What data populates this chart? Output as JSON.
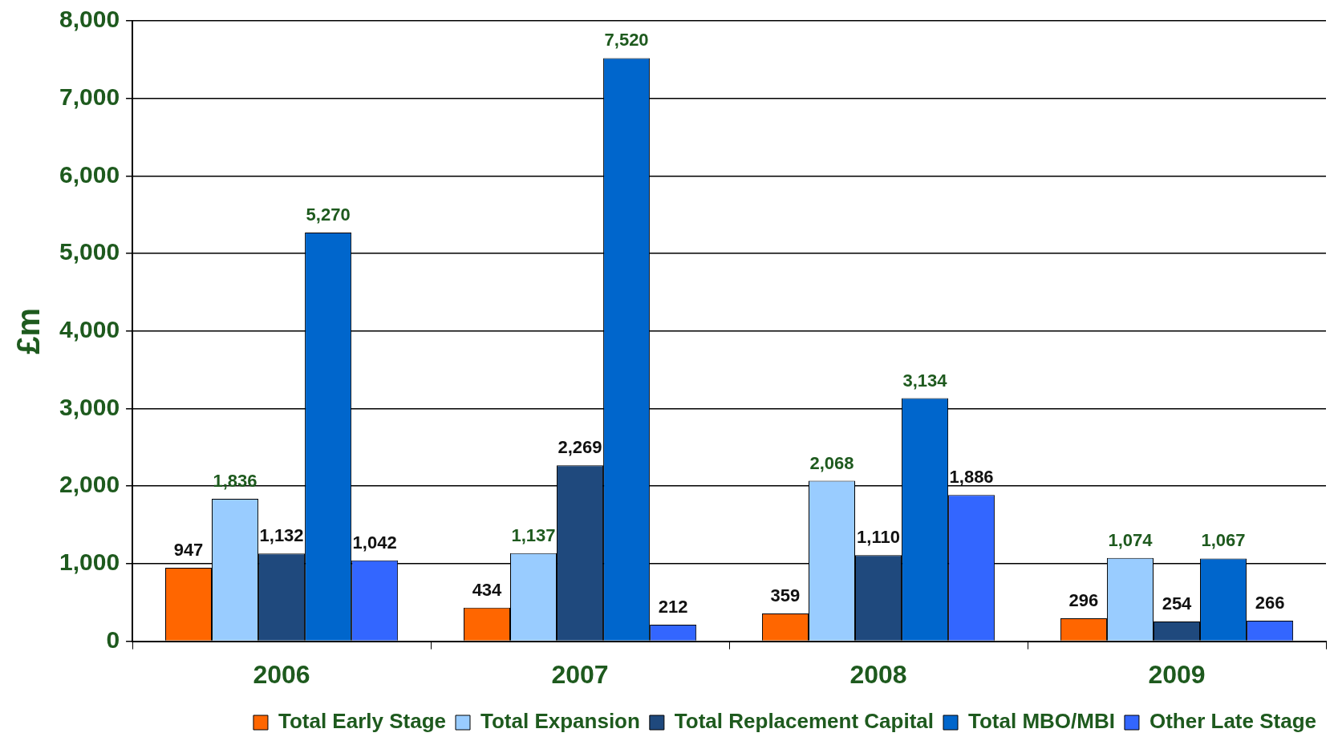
{
  "chart_data": {
    "type": "bar",
    "ylabel": "£m",
    "categories": [
      "2006",
      "2007",
      "2008",
      "2009"
    ],
    "series": [
      {
        "name": "Total Early Stage",
        "color": "#ff6600",
        "values": [
          947,
          434,
          359,
          296
        ],
        "value_labels": [
          "947",
          "434",
          "359",
          "296"
        ]
      },
      {
        "name": "Total Expansion",
        "color": "#99ccff",
        "values": [
          1836,
          1137,
          2068,
          1074
        ],
        "value_labels": [
          "1,836",
          "1,137",
          "2,068",
          "1,074"
        ]
      },
      {
        "name": "Total Replacement Capital",
        "color": "#1f497d",
        "values": [
          1132,
          2269,
          1110,
          254
        ],
        "value_labels": [
          "1,132",
          "2,269",
          "1,110",
          "254"
        ]
      },
      {
        "name": "Total MBO/MBI",
        "color": "#0066cc",
        "values": [
          5270,
          7520,
          3134,
          1067
        ],
        "value_labels": [
          "5,270",
          "7,520",
          "3,134",
          "1,067"
        ]
      },
      {
        "name": "Other Late Stage",
        "color": "#3366ff",
        "values": [
          1042,
          212,
          1886,
          266
        ],
        "value_labels": [
          "1,042",
          "212",
          "1,886",
          "266"
        ]
      }
    ],
    "ylim": [
      0,
      8000
    ],
    "yticks": [
      0,
      {
        "value": 1000,
        "label": "1,000"
      },
      {
        "value": 2000,
        "label": "2,000"
      },
      {
        "value": 3000,
        "label": "3,000"
      },
      {
        "value": 4000,
        "label": "4,000"
      },
      {
        "value": 5000,
        "label": "5,000"
      },
      {
        "value": 6000,
        "label": "6,000"
      },
      {
        "value": 7000,
        "label": "7,000"
      },
      {
        "value": 8000,
        "label": "8,000"
      }
    ],
    "grid": "y",
    "legend": "bottom"
  }
}
